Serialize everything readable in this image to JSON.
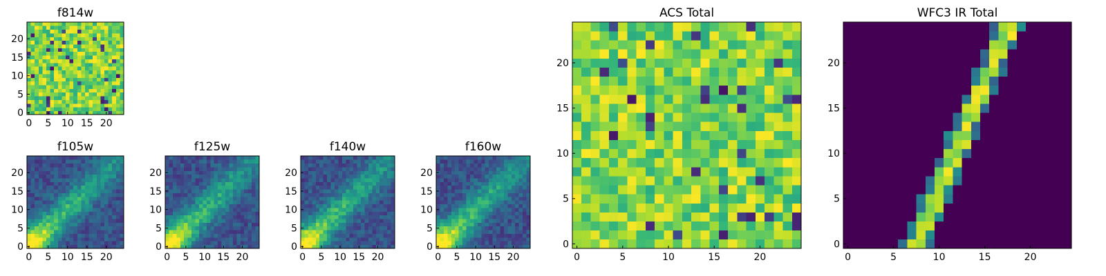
{
  "chart_data": [
    {
      "type": "heatmap",
      "title": "f814w",
      "pattern": "noise",
      "seed": 11,
      "size": 25,
      "xticks": [
        0,
        5,
        10,
        15,
        20
      ],
      "yticks": [
        0,
        5,
        10,
        15,
        20
      ],
      "colormap": "viridis"
    },
    {
      "type": "heatmap",
      "title": "f105w",
      "pattern": "diagonal",
      "seed": 21,
      "size": 25,
      "xticks": [
        0,
        5,
        10,
        15,
        20
      ],
      "yticks": [
        0,
        5,
        10,
        15,
        20
      ],
      "colormap": "viridis"
    },
    {
      "type": "heatmap",
      "title": "f125w",
      "pattern": "diagonal",
      "seed": 31,
      "size": 25,
      "xticks": [
        0,
        5,
        10,
        15,
        20
      ],
      "yticks": [
        0,
        5,
        10,
        15,
        20
      ],
      "colormap": "viridis"
    },
    {
      "type": "heatmap",
      "title": "f140w",
      "pattern": "diagonal",
      "seed": 41,
      "size": 25,
      "xticks": [
        0,
        5,
        10,
        15,
        20
      ],
      "yticks": [
        0,
        5,
        10,
        15,
        20
      ],
      "colormap": "viridis"
    },
    {
      "type": "heatmap",
      "title": "f160w",
      "pattern": "diagonal",
      "seed": 51,
      "size": 25,
      "xticks": [
        0,
        5,
        10,
        15,
        20
      ],
      "yticks": [
        0,
        5,
        10,
        15,
        20
      ],
      "colormap": "viridis"
    },
    {
      "type": "heatmap",
      "title": "ACS Total",
      "pattern": "noise",
      "seed": 61,
      "size": 25,
      "xticks": [
        0,
        5,
        10,
        15,
        20
      ],
      "yticks": [
        0,
        5,
        10,
        15,
        20
      ],
      "colormap": "viridis"
    },
    {
      "type": "heatmap",
      "title": "WFC3 IR Total",
      "pattern": "line",
      "seed": 71,
      "size": 25,
      "xticks": [
        0,
        5,
        10,
        15,
        20
      ],
      "yticks": [
        0,
        5,
        10,
        15,
        20
      ],
      "colormap": "viridis"
    }
  ]
}
